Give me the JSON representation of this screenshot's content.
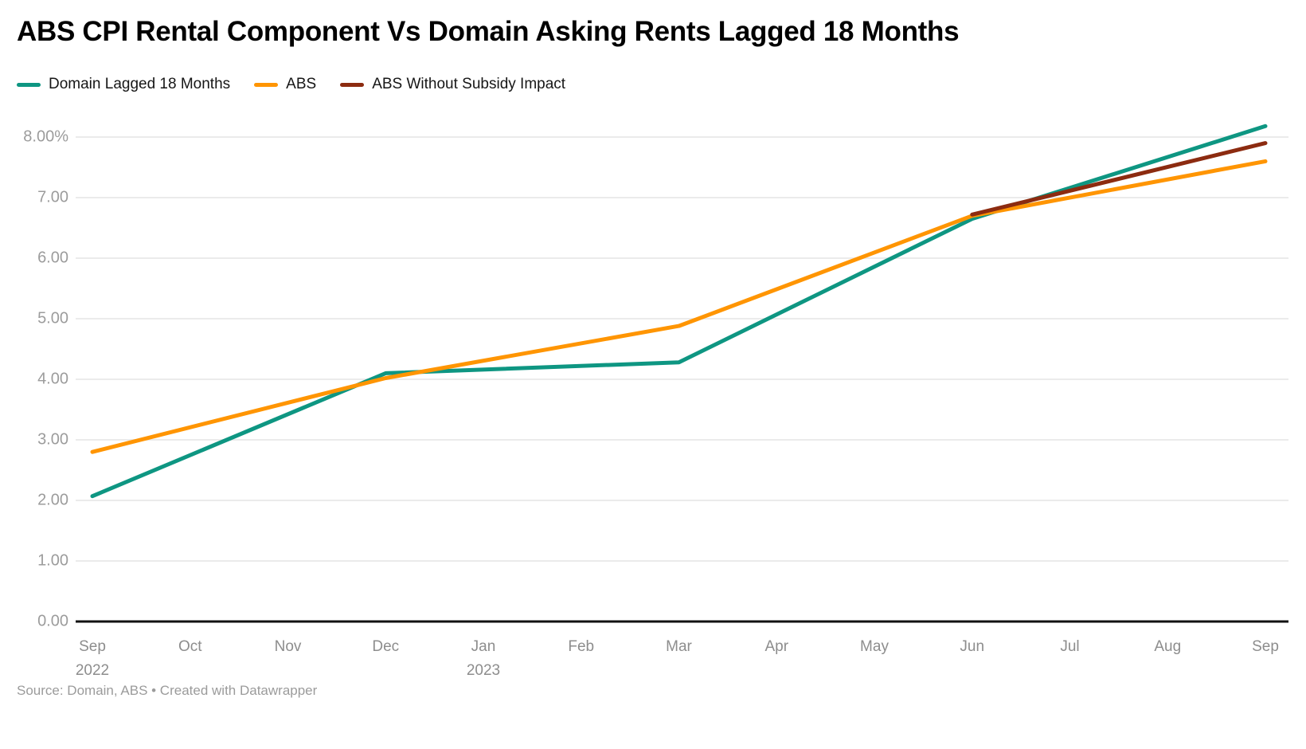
{
  "header": {
    "title": "ABS CPI Rental Component Vs Domain Asking Rents Lagged 18 Months"
  },
  "footer": {
    "source": "Source: Domain, ABS • Created with Datawrapper"
  },
  "colors": {
    "teal": "#0e9682",
    "orange": "#ff9502",
    "maroon": "#8c2b10",
    "grid": "#ebebeb",
    "axis": "#111111",
    "y_tick_text": "#9c9c9c",
    "x_tick_text": "#8d8d8d"
  },
  "chart_data": {
    "type": "line",
    "title": "ABS CPI Rental Component Vs Domain Asking Rents Lagged 18 Months",
    "xlabel": "",
    "ylabel": "",
    "ylim": [
      0,
      8.5
    ],
    "grid": "horizontal",
    "legend_position": "top-left",
    "y_ticks": [
      "0.00",
      "1.00",
      "2.00",
      "3.00",
      "4.00",
      "5.00",
      "6.00",
      "7.00",
      "8.00%"
    ],
    "categories": [
      {
        "id": "2022-09",
        "label": "Sep",
        "year": "2022"
      },
      {
        "id": "2022-10",
        "label": "Oct"
      },
      {
        "id": "2022-11",
        "label": "Nov"
      },
      {
        "id": "2022-12",
        "label": "Dec"
      },
      {
        "id": "2023-01",
        "label": "Jan",
        "year": "2023"
      },
      {
        "id": "2023-02",
        "label": "Feb"
      },
      {
        "id": "2023-03",
        "label": "Mar"
      },
      {
        "id": "2023-04",
        "label": "Apr"
      },
      {
        "id": "2023-05",
        "label": "May"
      },
      {
        "id": "2023-06",
        "label": "Jun"
      },
      {
        "id": "2023-07",
        "label": "Jul"
      },
      {
        "id": "2023-08",
        "label": "Aug"
      },
      {
        "id": "2023-09",
        "label": "Sep"
      }
    ],
    "series": [
      {
        "name": "Domain Lagged 18 Months",
        "color": "#0e9682",
        "points": [
          {
            "x": "2022-09",
            "y": 2.07
          },
          {
            "x": "2022-12",
            "y": 4.1
          },
          {
            "x": "2023-03",
            "y": 4.28
          },
          {
            "x": "2023-06",
            "y": 6.65
          },
          {
            "x": "2023-09",
            "y": 8.18
          }
        ]
      },
      {
        "name": "ABS",
        "color": "#ff9502",
        "points": [
          {
            "x": "2022-09",
            "y": 2.8
          },
          {
            "x": "2022-12",
            "y": 4.02
          },
          {
            "x": "2023-03",
            "y": 4.88
          },
          {
            "x": "2023-06",
            "y": 6.7
          },
          {
            "x": "2023-09",
            "y": 7.6
          }
        ]
      },
      {
        "name": "ABS Without Subsidy Impact",
        "color": "#8c2b10",
        "points": [
          {
            "x": "2023-06",
            "y": 6.72
          },
          {
            "x": "2023-09",
            "y": 7.9
          }
        ]
      }
    ]
  }
}
